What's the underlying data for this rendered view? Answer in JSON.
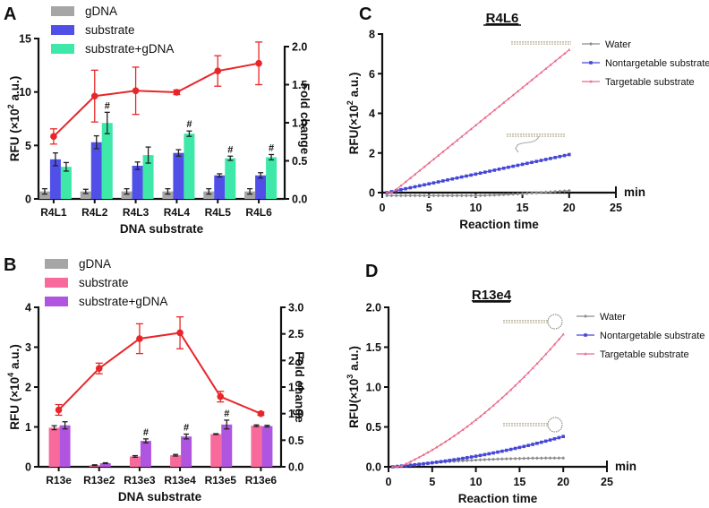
{
  "chart_data": [
    {
      "panel": "A",
      "type": "bar",
      "xlabel": "DNA substrate",
      "ylabel": "RFU (×10² a.u.)",
      "ylabel_parts": {
        "pre": "RFU (×10",
        "sup": "2",
        "post": " a.u.)"
      },
      "y2label": "Fold change",
      "ylim": [
        0,
        15
      ],
      "yticks": [
        0,
        5,
        10,
        15
      ],
      "y2lim": [
        0,
        2.0
      ],
      "y2ticks": [
        "0.0",
        "0.5",
        "1.0",
        "1.5",
        "2.0"
      ],
      "categories": [
        "R4L1",
        "R4L2",
        "R4L3",
        "R4L4",
        "R4L5",
        "R4L6"
      ],
      "series": [
        {
          "name": "gDNA",
          "color": "#a6a6a6",
          "values": [
            0.7,
            0.7,
            0.7,
            0.7,
            0.7,
            0.7
          ],
          "errors": [
            0.25,
            0.2,
            0.25,
            0.25,
            0.25,
            0.25
          ]
        },
        {
          "name": "substrate",
          "color": "#5050e8",
          "values": [
            3.7,
            5.3,
            3.1,
            4.3,
            2.2,
            2.2
          ],
          "errors": [
            0.6,
            0.6,
            0.35,
            0.3,
            0.15,
            0.25
          ]
        },
        {
          "name": "substrate+gDNA",
          "color": "#3de8a8",
          "values": [
            3.0,
            7.1,
            4.1,
            6.1,
            3.8,
            3.9
          ],
          "errors": [
            0.4,
            1.0,
            0.75,
            0.25,
            0.2,
            0.25
          ]
        }
      ],
      "significance": [
        null,
        "#",
        null,
        "#",
        "#",
        "#"
      ],
      "fold_change": {
        "name": "Fold change",
        "color": "#e8262a",
        "values": [
          0.82,
          1.35,
          1.42,
          1.4,
          1.68,
          1.78
        ],
        "errors": [
          0.1,
          0.34,
          0.31,
          0.03,
          0.2,
          0.28
        ]
      },
      "legend": "top-left"
    },
    {
      "panel": "B",
      "type": "bar",
      "xlabel": "DNA substrate",
      "ylabel": "RFU (×10⁴ a.u.)",
      "ylabel_parts": {
        "pre": "RFU (×10",
        "sup": "4",
        "post": " a.u.)"
      },
      "y2label": "Fold change",
      "ylim": [
        0,
        4
      ],
      "yticks": [
        0,
        1,
        2,
        3,
        4
      ],
      "y2lim": [
        0,
        3.0
      ],
      "y2ticks": [
        "0.0",
        "0.5",
        "1.0",
        "1.5",
        "2.0",
        "2.5",
        "3.0"
      ],
      "categories": [
        "R13e",
        "R13e2",
        "R13e3",
        "R13e4",
        "R13e5",
        "R13e6"
      ],
      "series": [
        {
          "name": "gDNA",
          "color": "#a6a6a6",
          "values": [
            0,
            0,
            0,
            0,
            0,
            0
          ],
          "errors": [
            0,
            0,
            0,
            0,
            0,
            0
          ]
        },
        {
          "name": "substrate",
          "color": "#f76a9b",
          "values": [
            0.98,
            0.04,
            0.26,
            0.29,
            0.82,
            1.03
          ],
          "errors": [
            0.05,
            0.01,
            0.02,
            0.02,
            0.01,
            0.02
          ]
        },
        {
          "name": "substrate+gDNA",
          "color": "#b055e0",
          "values": [
            1.04,
            0.09,
            0.65,
            0.76,
            1.06,
            1.02
          ],
          "errors": [
            0.09,
            0.01,
            0.05,
            0.06,
            0.11,
            0.02
          ]
        }
      ],
      "significance": [
        null,
        null,
        "#",
        "#",
        "#",
        null
      ],
      "fold_change": {
        "name": "Fold change",
        "color": "#e8262a",
        "values": [
          1.07,
          1.85,
          2.41,
          2.52,
          1.32,
          1.0
        ],
        "errors": [
          0.1,
          0.1,
          0.28,
          0.3,
          0.1,
          0.03
        ]
      },
      "legend": "top-left"
    },
    {
      "panel": "C",
      "type": "line",
      "title": "R4L6",
      "xlabel": "Reaction time",
      "xunit": "min",
      "ylabel": "RFU(×10² a.u.)",
      "ylabel_parts": {
        "pre": "RFU(×10",
        "sup": "2",
        "post": " a.u.)"
      },
      "xlim": [
        0,
        25
      ],
      "xticks": [
        0,
        5,
        10,
        15,
        20,
        25
      ],
      "ylim": [
        0,
        8
      ],
      "yticks": [
        0,
        2,
        4,
        6,
        8
      ],
      "x_range": [
        0.5,
        20
      ],
      "x_step": 0.5,
      "series": [
        {
          "name": "Water",
          "color": "#8c8c8c",
          "marker": "diamond",
          "start": -0.15,
          "end": 0.1,
          "shape": "late-rise"
        },
        {
          "name": "Nontargetable substrate",
          "color": "#4646d8",
          "marker": "square",
          "start": 0.0,
          "end": 1.92,
          "shape": "linear"
        },
        {
          "name": "Targetable substrate",
          "color": "#e86a8a",
          "marker": "triangle",
          "start": 0.0,
          "end": 7.2,
          "shape": "linear-lag"
        }
      ],
      "legend": "right"
    },
    {
      "panel": "D",
      "type": "line",
      "title": "R13e4",
      "xlabel": "Reaction time",
      "xunit": "min",
      "ylabel": "RFU(×10³ a.u.)",
      "ylabel_parts": {
        "pre": "RFU(×10",
        "sup": "3",
        "post": " a.u.)"
      },
      "xlim": [
        0,
        25
      ],
      "xticks": [
        0,
        5,
        10,
        15,
        20,
        25
      ],
      "ylim": [
        0,
        2.0
      ],
      "yticks": [
        "0.0",
        "0.5",
        "1.0",
        "1.5",
        "2.0"
      ],
      "x_range": [
        0.5,
        20
      ],
      "x_step": 0.5,
      "series": [
        {
          "name": "Water",
          "color": "#8c8c8c",
          "marker": "diamond",
          "start": 0.0,
          "end": 0.11,
          "shape": "saturating"
        },
        {
          "name": "Nontargetable substrate",
          "color": "#4646d8",
          "marker": "square",
          "start": 0.0,
          "end": 0.38,
          "shape": "quadratic"
        },
        {
          "name": "Targetable substrate",
          "color": "#e86a8a",
          "marker": "triangle",
          "start": 0.0,
          "end": 1.66,
          "shape": "quadratic-lag"
        }
      ],
      "legend": "right"
    }
  ]
}
